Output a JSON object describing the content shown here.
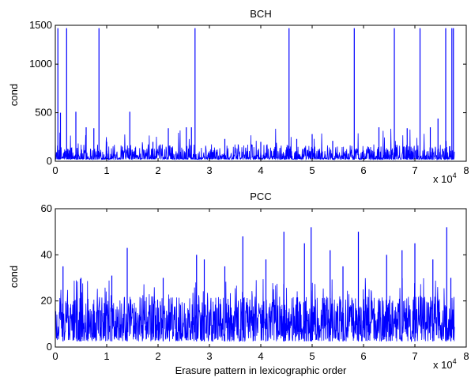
{
  "chart_data": [
    {
      "type": "line",
      "title": "BCH",
      "xlabel": "",
      "ylabel": "cond",
      "xlim": [
        0,
        8
      ],
      "ylim": [
        0,
        1400
      ],
      "x_ticks": [
        "0",
        "1",
        "2",
        "3",
        "4",
        "5",
        "6",
        "7",
        "8"
      ],
      "y_ticks": [
        "0",
        "500",
        "1000",
        "1500"
      ],
      "y_tick_values": [
        0,
        500,
        1000,
        1500
      ],
      "x_multiplier": "x 10",
      "x_multiplier_exponent": "4",
      "x_extent": 7.77,
      "baseline_range": [
        20,
        130
      ],
      "line_color": "#0000ff",
      "spikes": [
        {
          "x": 0.05,
          "y": 1370
        },
        {
          "x": 0.1,
          "y": 500
        },
        {
          "x": 0.22,
          "y": 1370
        },
        {
          "x": 0.4,
          "y": 510
        },
        {
          "x": 0.6,
          "y": 350
        },
        {
          "x": 0.75,
          "y": 340
        },
        {
          "x": 0.85,
          "y": 1370
        },
        {
          "x": 1.0,
          "y": 200
        },
        {
          "x": 1.45,
          "y": 510
        },
        {
          "x": 1.9,
          "y": 200
        },
        {
          "x": 2.2,
          "y": 340
        },
        {
          "x": 2.55,
          "y": 350
        },
        {
          "x": 2.65,
          "y": 350
        },
        {
          "x": 2.72,
          "y": 1370
        },
        {
          "x": 3.3,
          "y": 230
        },
        {
          "x": 4.0,
          "y": 200
        },
        {
          "x": 4.55,
          "y": 1370
        },
        {
          "x": 4.7,
          "y": 230
        },
        {
          "x": 5.0,
          "y": 280
        },
        {
          "x": 5.4,
          "y": 210
        },
        {
          "x": 5.82,
          "y": 1370
        },
        {
          "x": 6.3,
          "y": 350
        },
        {
          "x": 6.6,
          "y": 1370
        },
        {
          "x": 6.85,
          "y": 340
        },
        {
          "x": 7.1,
          "y": 1370
        },
        {
          "x": 7.3,
          "y": 350
        },
        {
          "x": 7.45,
          "y": 440
        },
        {
          "x": 7.6,
          "y": 1370
        },
        {
          "x": 7.72,
          "y": 1370
        },
        {
          "x": 7.75,
          "y": 1370
        }
      ]
    },
    {
      "type": "line",
      "title": "PCC",
      "xlabel": "Erasure pattern in lexicographic order",
      "ylabel": "cond",
      "xlim": [
        0,
        8
      ],
      "ylim": [
        0,
        60
      ],
      "x_ticks": [
        "0",
        "1",
        "2",
        "3",
        "4",
        "5",
        "6",
        "7",
        "8"
      ],
      "y_ticks": [
        "0",
        "20",
        "40",
        "60"
      ],
      "y_tick_values": [
        0,
        20,
        40,
        60
      ],
      "x_multiplier": "x 10",
      "x_multiplier_exponent": "4",
      "x_extent": 7.77,
      "baseline_range": [
        2.5,
        22
      ],
      "line_color": "#0000ff",
      "spikes": [
        {
          "x": 0.15,
          "y": 35
        },
        {
          "x": 0.5,
          "y": 30
        },
        {
          "x": 1.1,
          "y": 31
        },
        {
          "x": 1.4,
          "y": 43
        },
        {
          "x": 2.1,
          "y": 30
        },
        {
          "x": 2.75,
          "y": 40
        },
        {
          "x": 2.9,
          "y": 38
        },
        {
          "x": 3.3,
          "y": 35
        },
        {
          "x": 3.65,
          "y": 48
        },
        {
          "x": 4.1,
          "y": 38
        },
        {
          "x": 4.45,
          "y": 50
        },
        {
          "x": 4.85,
          "y": 45
        },
        {
          "x": 4.98,
          "y": 52
        },
        {
          "x": 5.35,
          "y": 42
        },
        {
          "x": 5.6,
          "y": 35
        },
        {
          "x": 5.9,
          "y": 50
        },
        {
          "x": 6.45,
          "y": 40
        },
        {
          "x": 6.75,
          "y": 42
        },
        {
          "x": 7.0,
          "y": 45
        },
        {
          "x": 7.35,
          "y": 38
        },
        {
          "x": 7.62,
          "y": 52
        },
        {
          "x": 7.7,
          "y": 30
        }
      ]
    }
  ]
}
